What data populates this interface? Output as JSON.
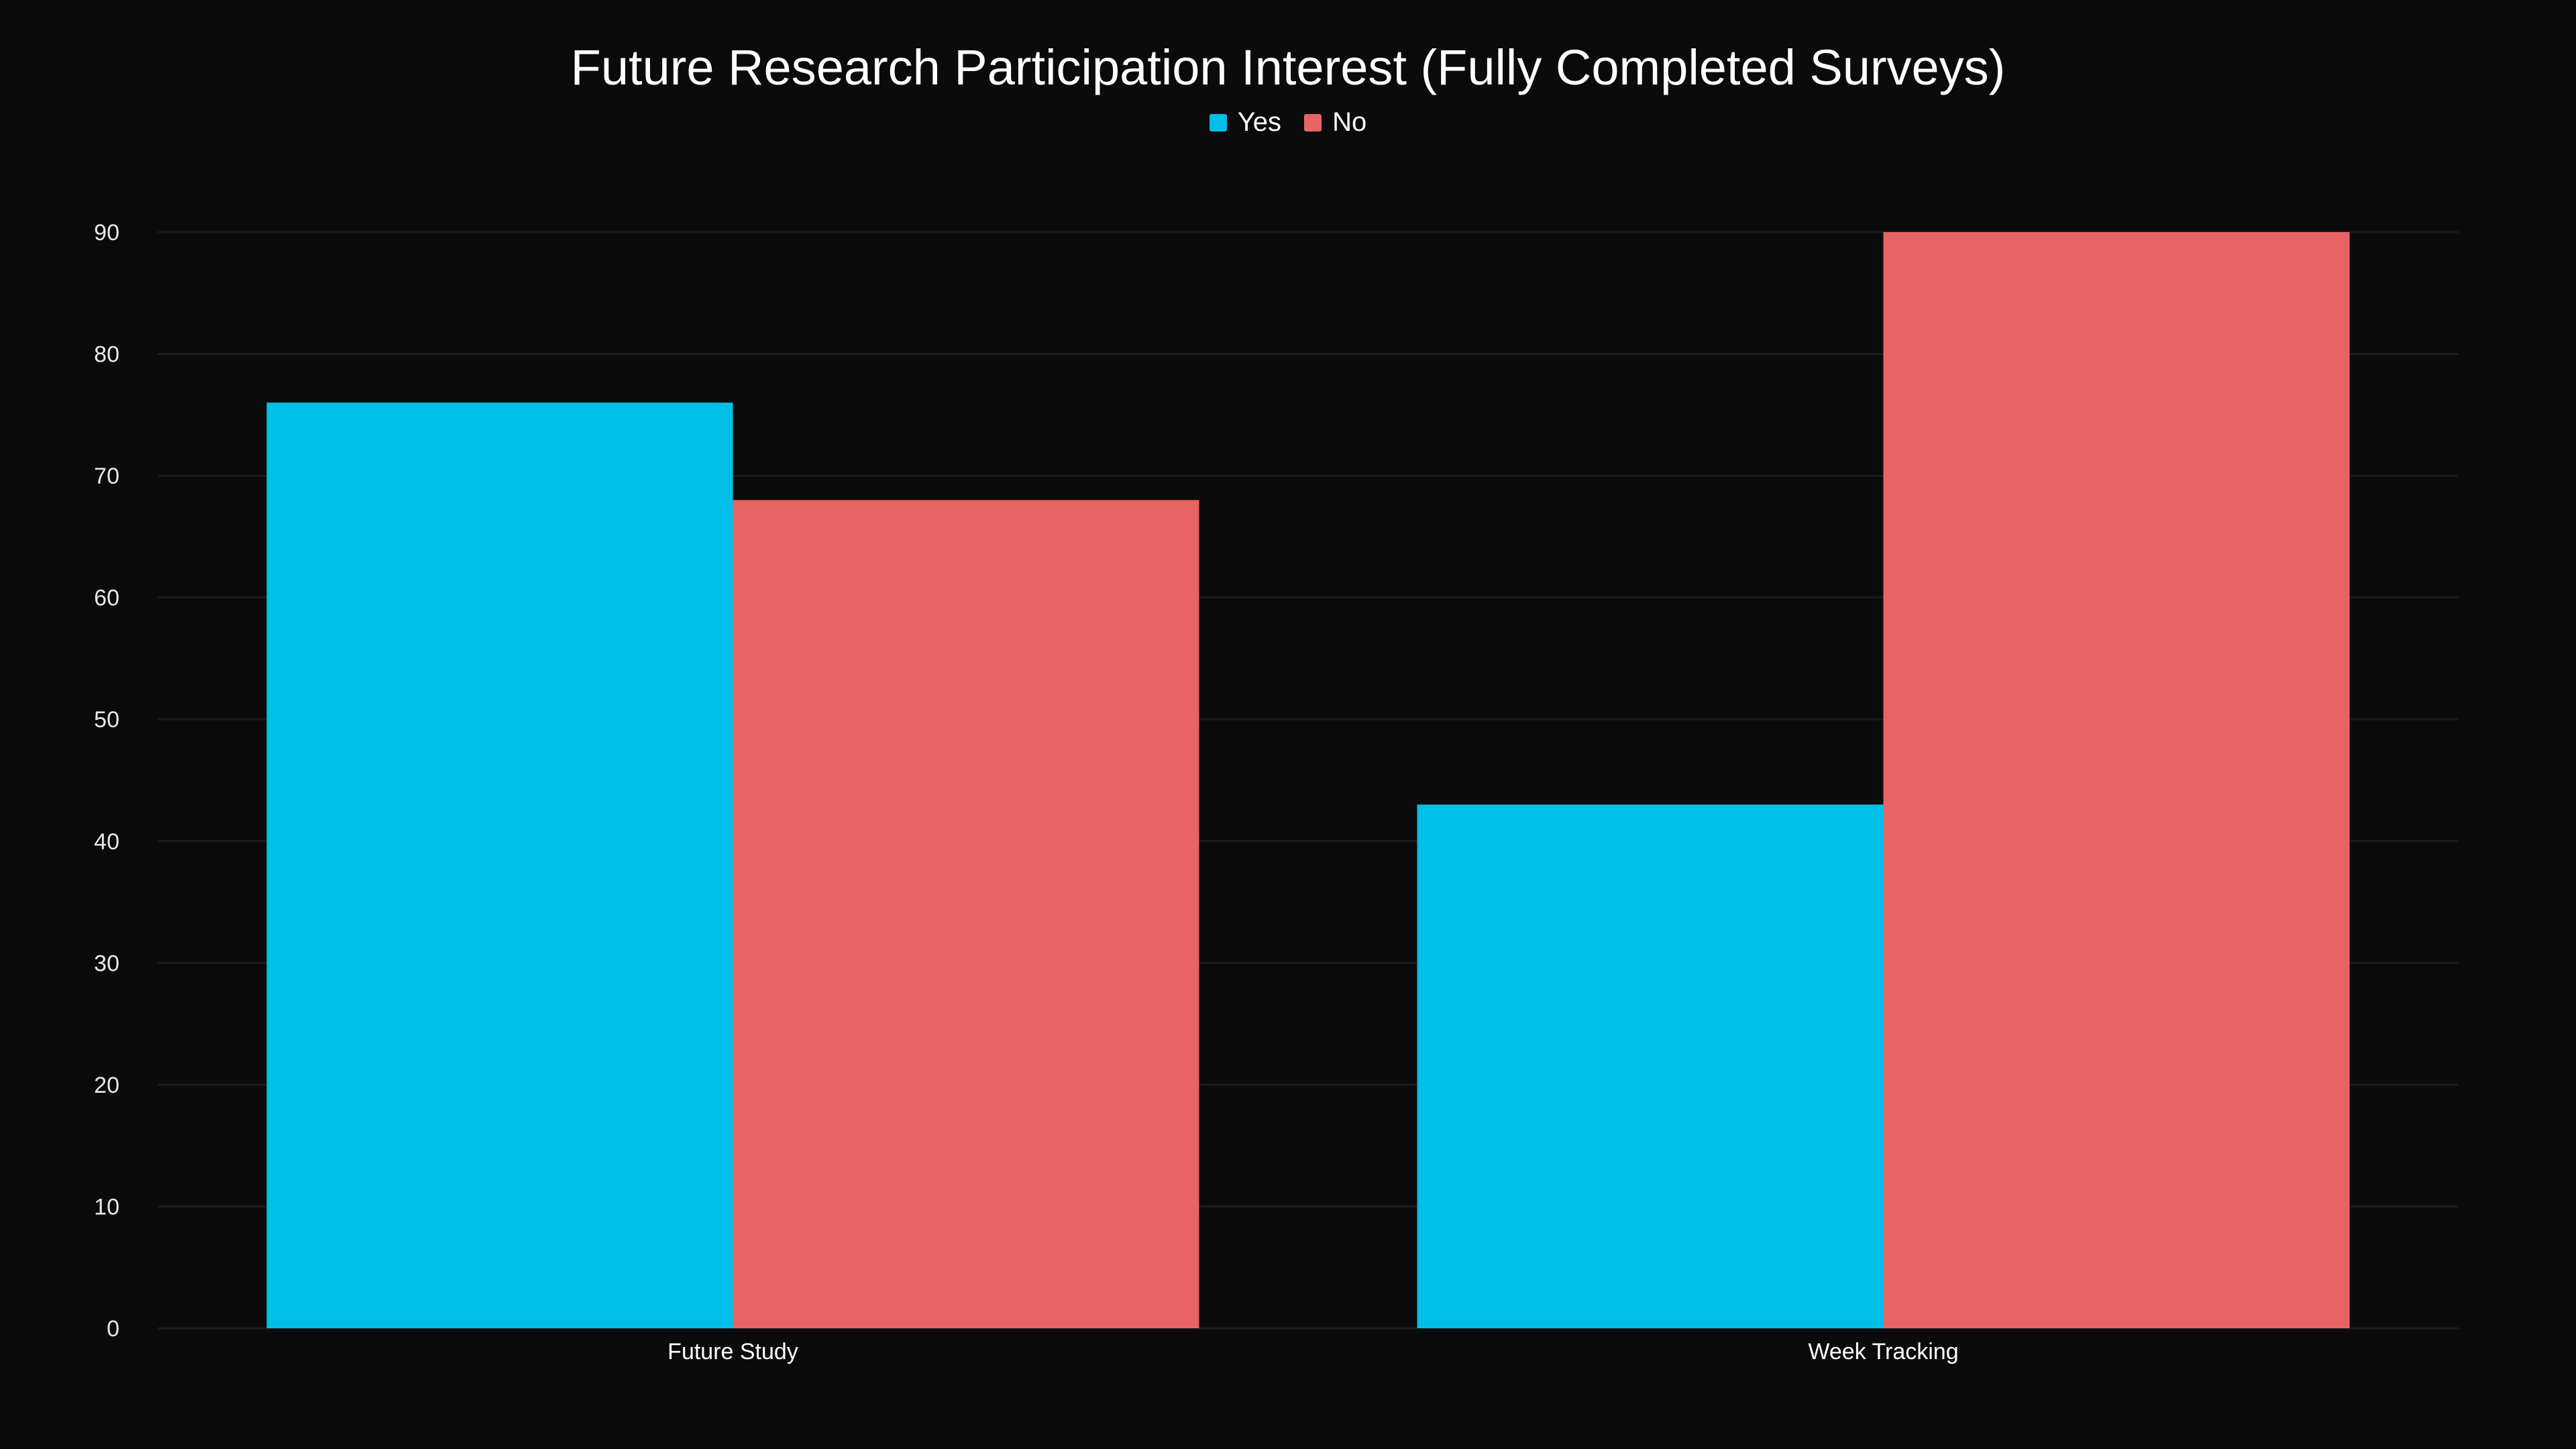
{
  "chart_data": {
    "type": "bar",
    "title": "Future Research Participation Interest (Fully Completed Surveys)",
    "categories": [
      "Future Study",
      "Week Tracking"
    ],
    "series": [
      {
        "name": "Yes",
        "values": [
          76,
          43
        ],
        "color": "#00bfe6"
      },
      {
        "name": "No",
        "values": [
          68,
          90
        ],
        "color": "#e86464"
      }
    ],
    "ylim": [
      0,
      90
    ],
    "yticks": [
      0,
      10,
      20,
      30,
      40,
      50,
      60,
      70,
      80,
      90
    ],
    "grid": true,
    "legend": "top-center",
    "xlabel": "",
    "ylabel": ""
  },
  "colors": {
    "background": "#0b0b0c",
    "grid": "#1c1c1e",
    "text": "#ffffff"
  }
}
